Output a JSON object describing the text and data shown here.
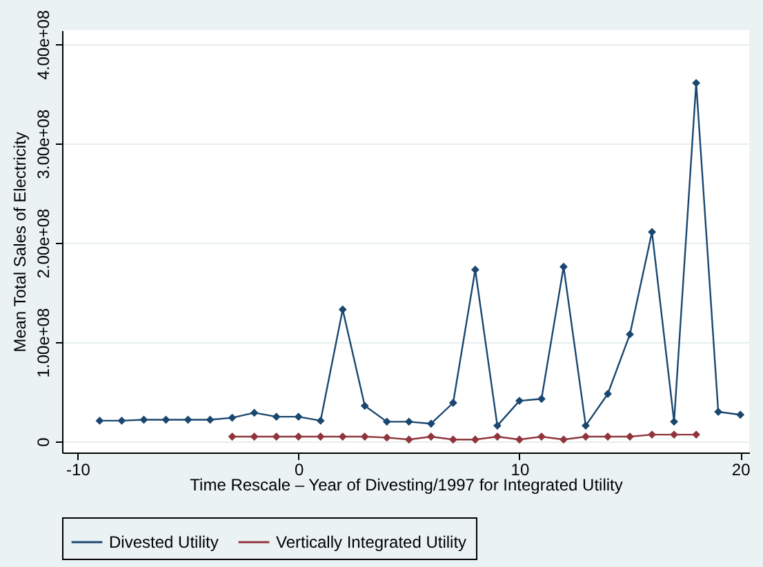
{
  "chart_data": {
    "type": "line",
    "xlabel": "Time Rescale – Year of Divesting/1997 for Integrated Utility",
    "ylabel": "Mean Total Sales of Electricity",
    "xlim": [
      -10.7,
      20.4
    ],
    "xticks": [
      -10,
      0,
      10,
      20
    ],
    "ylim": [
      -11000000,
      414000000
    ],
    "yticks": [
      0,
      {
        "value": 100000000,
        "label": "1.00e+08"
      },
      {
        "value": 200000000,
        "label": "2.00e+08"
      },
      {
        "value": 300000000,
        "label": "3.00e+08"
      },
      {
        "value": 400000000,
        "label": "4.00e+08"
      }
    ],
    "grid": "y",
    "legend": "bottom",
    "marker": "diamond",
    "line_style": "solid",
    "series": [
      {
        "name": "Divested Utility",
        "color": "#1a476f",
        "x": [
          -9,
          -8,
          -7,
          -6,
          -5,
          -4,
          -3,
          -2,
          -1,
          0,
          1,
          2,
          3,
          4,
          5,
          6,
          7,
          8,
          9,
          10,
          11,
          12,
          13,
          14,
          15,
          16,
          17,
          18,
          19,
          20
        ],
        "values": [
          21000000,
          21000000,
          22000000,
          22000000,
          22000000,
          22000000,
          24000000,
          29000000,
          25000000,
          25000000,
          21000000,
          133000000,
          36000000,
          20000000,
          20000000,
          18000000,
          39000000,
          173000000,
          16000000,
          41000000,
          43000000,
          176000000,
          16000000,
          48000000,
          108000000,
          211000000,
          20000000,
          361000000,
          30000000,
          27000000
        ]
      },
      {
        "name": "Vertically Integrated Utility",
        "color": "#90353b",
        "x": [
          -3,
          -2,
          -1,
          0,
          1,
          2,
          3,
          4,
          5,
          6,
          7,
          8,
          9,
          10,
          11,
          12,
          13,
          14,
          15,
          16,
          17,
          18
        ],
        "values": [
          5000000,
          5000000,
          5000000,
          5000000,
          5000000,
          5000000,
          5000000,
          4000000,
          2000000,
          5000000,
          2000000,
          2000000,
          5000000,
          2000000,
          5000000,
          2000000,
          5000000,
          5000000,
          5000000,
          7000000,
          7000000,
          7000000
        ]
      }
    ]
  }
}
